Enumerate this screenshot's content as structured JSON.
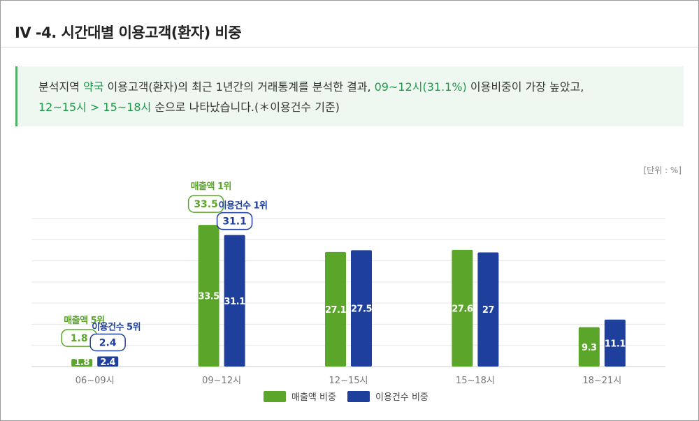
{
  "title": "IV -4. 시간대별 이용고객(환자) 비중",
  "summary": {
    "p1": "분석지역 ",
    "region": "약국",
    "p2": " 이용고객(환자)의 최근 1년간의 거래통계를 분석한 결과, ",
    "top": "09~12시(31.1%)",
    "p3": " 이용비중이 가장 높았고,",
    "next": "12~15시 > 15~18시",
    "p4": " 순으로 나타났습니다.(＊이용건수 기준)"
  },
  "unit": "[단위 : %]",
  "chart_data": {
    "type": "bar",
    "categories": [
      "06~09시",
      "09~12시",
      "12~15시",
      "15~18시",
      "18~21시"
    ],
    "series": [
      {
        "name": "매출액 비중",
        "values": [
          1.8,
          33.5,
          27.1,
          27.6,
          9.3
        ],
        "color": "#5aa52a"
      },
      {
        "name": "이용건수 비중",
        "values": [
          2.4,
          31.1,
          27.5,
          27,
          11.1
        ],
        "color": "#1e3f9c"
      }
    ],
    "ylim": [
      0,
      35
    ],
    "grid": true,
    "legend": "bottom",
    "annotations": [
      {
        "category": "09~12시",
        "series": "매출액 비중",
        "text": "매출액 1위",
        "value": "33.5"
      },
      {
        "category": "09~12시",
        "series": "이용건수 비중",
        "text": "이용건수 1위",
        "value": "31.1"
      },
      {
        "category": "06~09시",
        "series": "매출액 비중",
        "text": "매출액 5위",
        "value": "1.8"
      },
      {
        "category": "06~09시",
        "series": "이용건수 비중",
        "text": "이용건수 5위",
        "value": "2.4"
      }
    ]
  }
}
